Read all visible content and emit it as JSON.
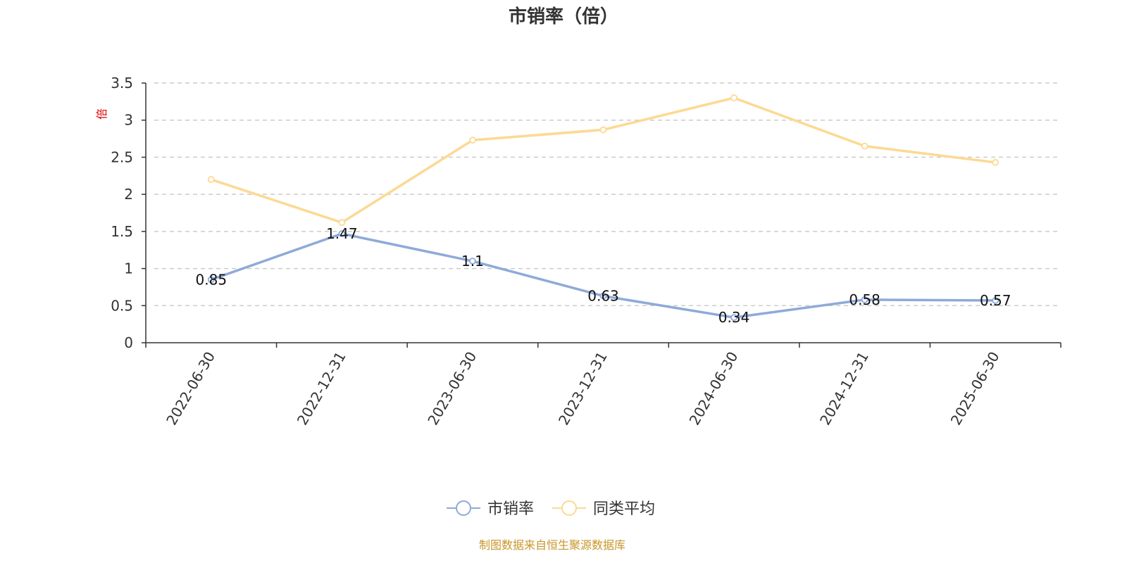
{
  "chart_data": {
    "type": "line",
    "title": "市销率（倍）",
    "ylabel": "倍",
    "categories": [
      "2022-06-30",
      "2022-12-31",
      "2023-06-30",
      "2023-12-31",
      "2024-06-30",
      "2024-12-31",
      "2025-06-30"
    ],
    "ylim": [
      0,
      3.5
    ],
    "yticks": [
      "0",
      "0.5",
      "1",
      "1.5",
      "2",
      "2.5",
      "3",
      "3.5"
    ],
    "grid": true,
    "legend_position": "bottom",
    "series": [
      {
        "name": "市销率",
        "color": "#8eaad8",
        "show_labels": true,
        "values": [
          0.85,
          1.47,
          1.1,
          0.63,
          0.34,
          0.58,
          0.57
        ],
        "labels": [
          "0.85",
          "1.47",
          "1.1",
          "0.63",
          "0.34",
          "0.58",
          "0.57"
        ]
      },
      {
        "name": "同类平均",
        "color": "#fcd993",
        "show_labels": false,
        "values": [
          2.2,
          1.62,
          2.73,
          2.87,
          3.3,
          2.65,
          2.43
        ]
      }
    ],
    "source": "制图数据来自恒生聚源数据库"
  }
}
